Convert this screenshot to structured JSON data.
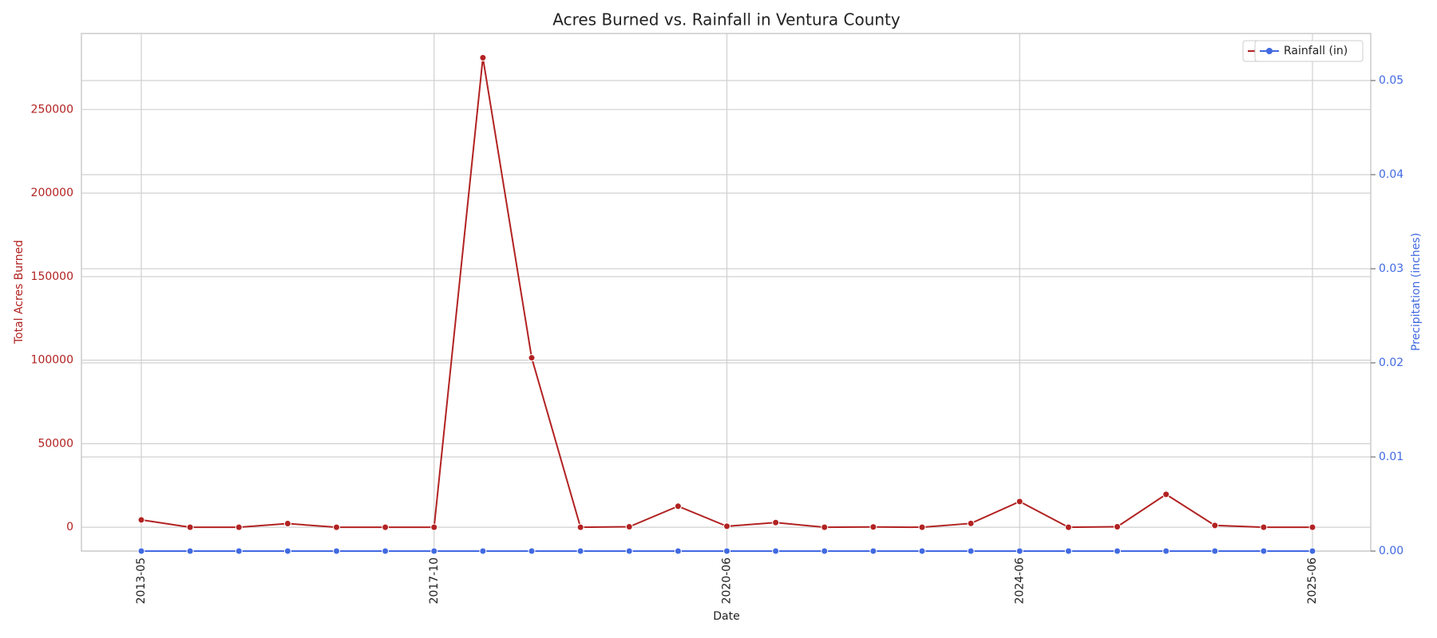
{
  "chart_data": {
    "type": "line",
    "title": "Acres Burned vs. Rainfall in Ventura County",
    "x_label": "Date",
    "y_label": "Total Acres Burned",
    "y2_label": "Precipitation (inches)",
    "categories": [
      "2013-05",
      null,
      null,
      null,
      null,
      null,
      "2017-10",
      null,
      null,
      null,
      null,
      null,
      "2020-06",
      null,
      null,
      null,
      null,
      null,
      "2024-06",
      null,
      null,
      null,
      null,
      null,
      "2025-06"
    ],
    "series": [
      {
        "name": "Acres Burned",
        "color": "#b22222",
        "axis": "y",
        "values": [
          4400,
          0,
          0,
          2200,
          0,
          0,
          0,
          281000,
          101400,
          0,
          300,
          12600,
          600,
          2800,
          0,
          200,
          0,
          2300,
          15400,
          0,
          300,
          19700,
          1100,
          0,
          0
        ]
      },
      {
        "name": "Rainfall (in)",
        "color": "#4169e1",
        "axis": "y2",
        "values": [
          0,
          0,
          0,
          0,
          0,
          0,
          0,
          0,
          0,
          0,
          0,
          0,
          0,
          0,
          0,
          0,
          0,
          0,
          0,
          0,
          0,
          0,
          0,
          0,
          0
        ]
      }
    ],
    "ylim": [
      -14250,
      295500
    ],
    "yticks": [
      0,
      50000,
      100000,
      150000,
      200000,
      250000
    ],
    "y2lim": [
      0,
      0.055
    ],
    "y2ticks": [
      {
        "value": 0,
        "label": "0.00"
      },
      {
        "value": 0.01,
        "label": "0.01"
      },
      {
        "value": 0.02,
        "label": "0.02"
      },
      {
        "value": 0.03,
        "label": "0.03"
      },
      {
        "value": 0.04,
        "label": "0.04"
      },
      {
        "value": 0.05,
        "label": "0.05"
      }
    ],
    "grid": true,
    "legend": "upper right"
  }
}
